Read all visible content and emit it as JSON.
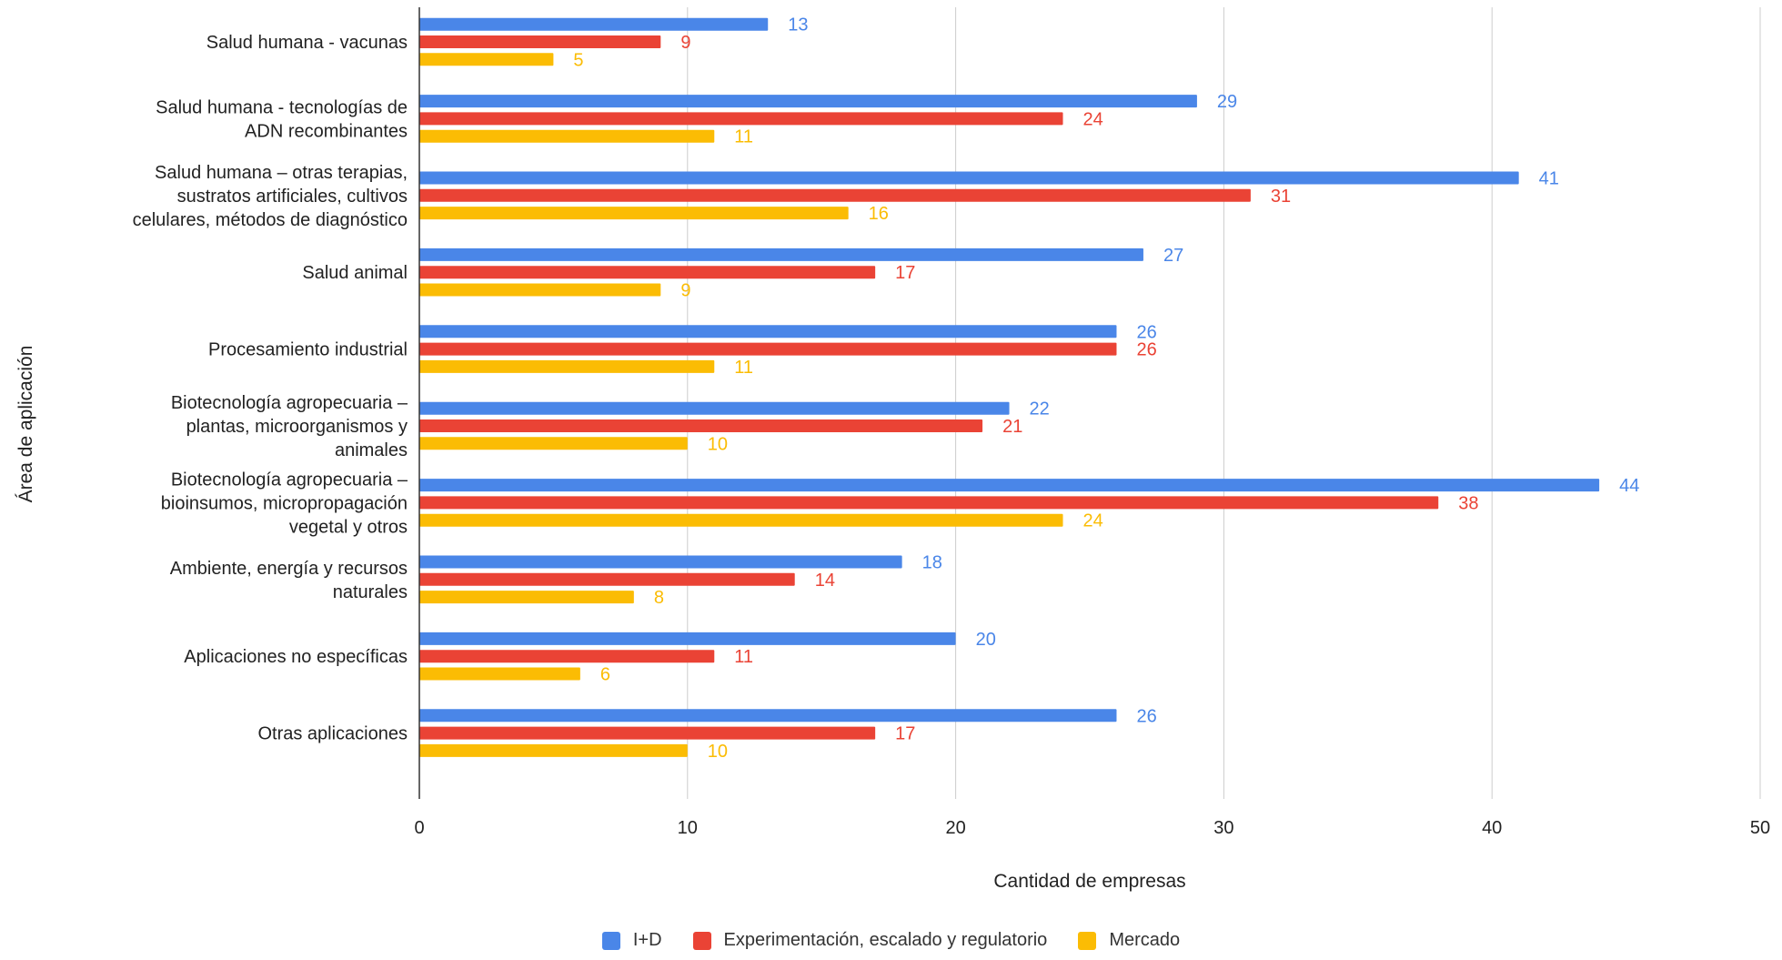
{
  "chart_data": {
    "type": "bar",
    "orientation": "horizontal",
    "title": "",
    "xlabel": "Cantidad de empresas",
    "ylabel": "Área de aplicación",
    "xlim": [
      0,
      50
    ],
    "xticks": [
      0,
      10,
      20,
      30,
      40,
      50
    ],
    "grid": true,
    "legend_position": "bottom",
    "categories": [
      [
        "Salud humana - vacunas"
      ],
      [
        "Salud humana - tecnologías de",
        "ADN recombinantes"
      ],
      [
        "Salud humana – otras terapias,",
        "sustratos artificiales, cultivos",
        "celulares, métodos de diagnóstico"
      ],
      [
        "Salud animal"
      ],
      [
        "Procesamiento industrial"
      ],
      [
        "Biotecnología agropecuaria –",
        "plantas, microorganismos y",
        "animales"
      ],
      [
        "Biotecnología agropecuaria –",
        "bioinsumos, micropropagación",
        "vegetal y otros"
      ],
      [
        "Ambiente, energía y recursos",
        "naturales"
      ],
      [
        "Aplicaciones no específicas"
      ],
      [
        "Otras aplicaciones"
      ]
    ],
    "series": [
      {
        "name": "I+D",
        "color": "#4a86e8",
        "values": [
          13,
          29,
          41,
          27,
          26,
          22,
          44,
          18,
          20,
          26
        ]
      },
      {
        "name": "Experimentación, escalado y regulatorio",
        "color": "#ea4335",
        "values": [
          9,
          24,
          31,
          17,
          26,
          21,
          38,
          14,
          11,
          17
        ]
      },
      {
        "name": "Mercado",
        "color": "#fbbc04",
        "values": [
          5,
          11,
          16,
          9,
          11,
          10,
          24,
          8,
          6,
          10
        ]
      }
    ]
  }
}
